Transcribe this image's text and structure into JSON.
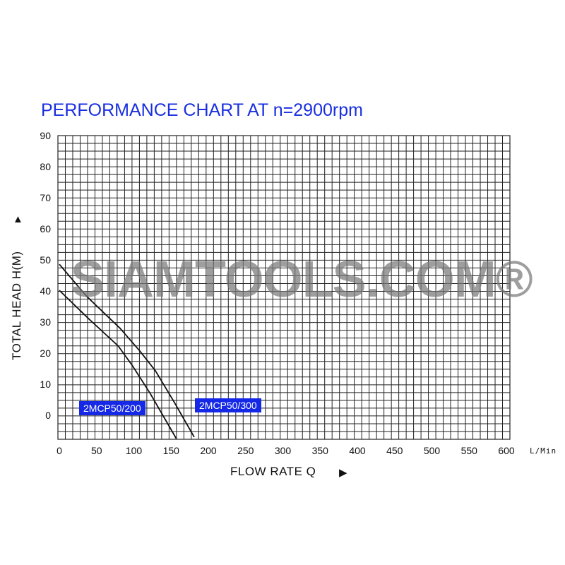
{
  "chart_data": {
    "type": "line",
    "title": "PERFORMANCE CHART AT n=2900rpm",
    "xlabel": "FLOW RATE Q",
    "ylabel": "TOTAL HEAD H(M)",
    "x_unit": "L/Min",
    "xlim": [
      0,
      600
    ],
    "ylim": [
      -7.5,
      90
    ],
    "x_ticks": [
      "0",
      "50",
      "100",
      "150",
      "200",
      "250",
      "300",
      "350",
      "400",
      "450",
      "500",
      "550",
      "600"
    ],
    "y_ticks": [
      "90",
      "80",
      "70",
      "60",
      "50",
      "40",
      "30",
      "20",
      "10",
      "0"
    ],
    "grid": true,
    "series": [
      {
        "name": "2MCP50/200",
        "color": "#111111",
        "x": [
          0,
          41,
          79,
          98,
          122,
          157
        ],
        "y": [
          40.2,
          30.7,
          22.3,
          16,
          7,
          -7.5
        ]
      },
      {
        "name": "2MCP50/300",
        "color": "#111111",
        "x": [
          0,
          37,
          81.5,
          108,
          129,
          154.5,
          181
        ],
        "y": [
          48.6,
          38.2,
          28,
          20.7,
          14.3,
          4.1,
          -7
        ]
      }
    ]
  },
  "watermark": "SIAMTOOLS.COM®",
  "colors": {
    "title": "#1a2fe0",
    "label_bg": "#1428e6",
    "grid": "#222222"
  }
}
